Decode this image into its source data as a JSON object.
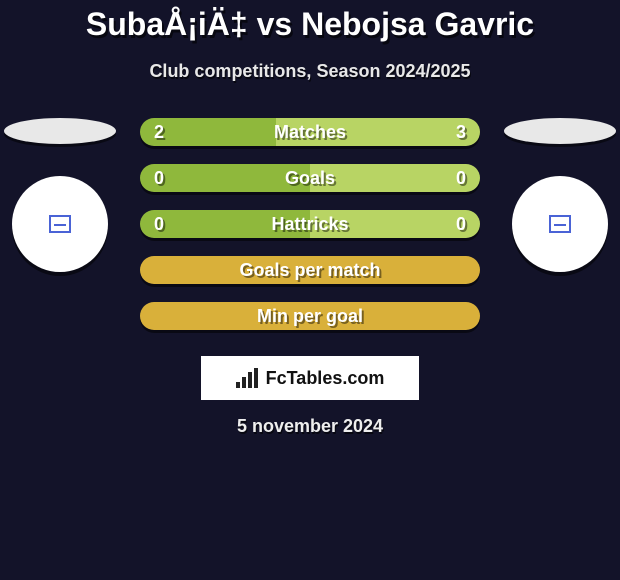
{
  "colors": {
    "left_color": "#8fb83c",
    "right_color": "#b8d464",
    "full_color": "#d9b03a"
  },
  "title": {
    "player1": "SubaÅ¡iÄ‡",
    "vs": "vs",
    "player2": "Nebojsa Gavric"
  },
  "subtitle": "Club competitions, Season 2024/2025",
  "bars": [
    {
      "label": "Matches",
      "left": "2",
      "right": "3",
      "split": 40,
      "left_color_key": "left_color",
      "right_color_key": "right_color"
    },
    {
      "label": "Goals",
      "left": "0",
      "right": "0",
      "split": 50,
      "left_color_key": "left_color",
      "right_color_key": "right_color"
    },
    {
      "label": "Hattricks",
      "left": "0",
      "right": "0",
      "split": 50,
      "left_color_key": "left_color",
      "right_color_key": "right_color"
    },
    {
      "label": "Goals per match",
      "left": "",
      "right": "",
      "split": 100,
      "left_color_key": "full_color",
      "right_color_key": "full_color"
    },
    {
      "label": "Min per goal",
      "left": "",
      "right": "",
      "split": 100,
      "left_color_key": "full_color",
      "right_color_key": "full_color"
    }
  ],
  "logo_text": "FcTables.com",
  "date": "5 november 2024"
}
